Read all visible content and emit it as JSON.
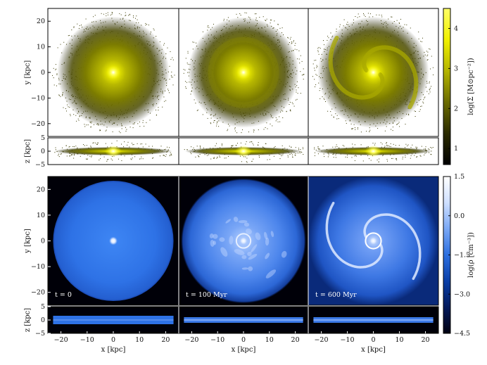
{
  "chart_data": [
    {
      "type": "heatmap",
      "quantity": "stellar surface density",
      "colorbar_label": "log(Σ [M⊙pc⁻²])",
      "colorbar_ticks": [
        1,
        2,
        3,
        4
      ],
      "colorbar_range": [
        0.6,
        4.5
      ],
      "colormap": [
        "#000000",
        "#2a2a00",
        "#6b6b00",
        "#b5b500",
        "#f0f000",
        "#ffff66"
      ],
      "face_on": {
        "ylabel": "y [kpc]",
        "yticks": [
          -20,
          -10,
          0,
          10,
          20
        ],
        "ylim": [
          -25,
          25
        ]
      },
      "edge_on": {
        "ylabel": "z [kpc]",
        "yticks": [
          -5,
          0,
          5
        ],
        "ylim": [
          -5,
          5
        ]
      },
      "xlim": [
        -25,
        25
      ],
      "panels": [
        {
          "time_myr": 0,
          "morphology": "axisymmetric disc"
        },
        {
          "time_myr": 100,
          "morphology": "flocculent structure"
        },
        {
          "time_myr": 600,
          "morphology": "two-armed spiral"
        }
      ]
    },
    {
      "type": "heatmap",
      "quantity": "gas density",
      "colorbar_label": "log(ρ [cm⁻³])",
      "colorbar_ticks": [
        "1.5",
        "0.0",
        "-1.5",
        "-3.0",
        "-4.5"
      ],
      "colorbar_range": [
        -4.5,
        1.5
      ],
      "colormap": [
        "#000010",
        "#031a5c",
        "#0a3fa8",
        "#2d6fe0",
        "#7aa8f5",
        "#cfe0ff",
        "#ffffff"
      ],
      "face_on": {
        "ylabel": "y [kpc]",
        "yticks": [
          -20,
          -10,
          0,
          10,
          20
        ],
        "ylim": [
          -25,
          25
        ]
      },
      "edge_on": {
        "ylabel": "z [kpc]",
        "yticks": [
          -5,
          0,
          5
        ],
        "ylim": [
          -5,
          5
        ]
      },
      "xlabel": "x [kpc]",
      "xticks": [
        -20,
        -10,
        0,
        10,
        20
      ],
      "xlim": [
        -25,
        25
      ],
      "panels": [
        {
          "time_label": "t = 0",
          "time_myr": 0
        },
        {
          "time_label": "t = 100 Myr",
          "time_myr": 100
        },
        {
          "time_label": "t = 600 Myr",
          "time_myr": 600
        }
      ]
    }
  ]
}
